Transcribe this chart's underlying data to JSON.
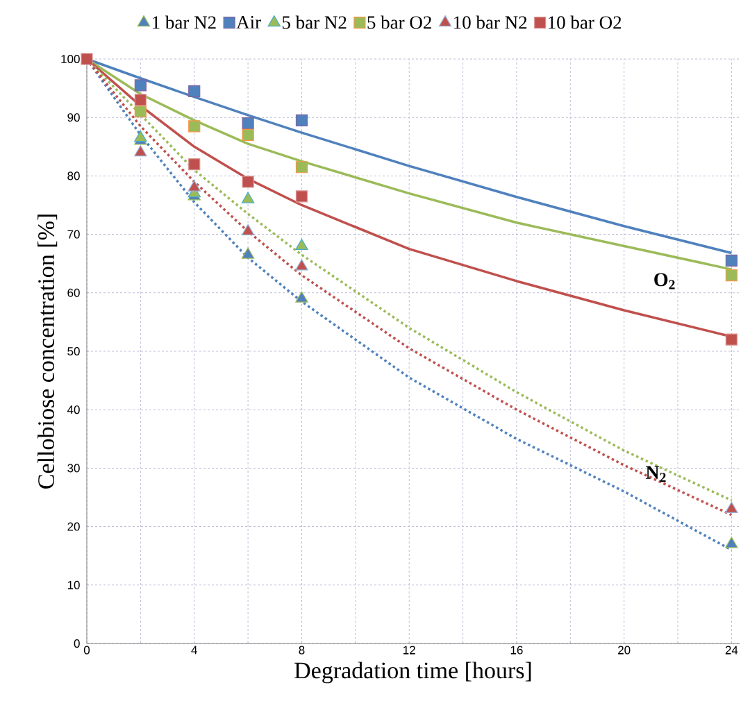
{
  "chart_data": {
    "type": "scatter",
    "xlabel": "Degradation time [hours]",
    "ylabel": "Cellobiose concentration [%]",
    "xlim": [
      0,
      24.3
    ],
    "ylim": [
      0,
      100
    ],
    "xticks": [
      0,
      {
        "value": 2,
        "label": null
      },
      4,
      {
        "value": 6,
        "label": null
      },
      8,
      {
        "value": 10,
        "label": null
      },
      12,
      {
        "value": 14,
        "label": null
      },
      16,
      {
        "value": 18,
        "label": null
      },
      20,
      {
        "value": 22,
        "label": null
      },
      24
    ],
    "yticks": [
      0,
      10,
      20,
      30,
      40,
      50,
      60,
      70,
      80,
      90,
      100
    ],
    "grid": true,
    "legend": "top",
    "annotations": [
      "O$_{2}$",
      "N$_{2}$"
    ],
    "series": [
      {
        "name": "1 bar N2",
        "marker": "triangle",
        "color": "#4f81bd",
        "x": [
          2,
          4,
          6,
          8,
          24
        ],
        "values": [
          86,
          76.5,
          66.5,
          59,
          17
        ]
      },
      {
        "name": "Air",
        "marker": "square",
        "color": "#4f81bd",
        "x": [
          2,
          4,
          6,
          8,
          24
        ],
        "values": [
          95.5,
          94.5,
          89,
          89.5,
          65.5
        ]
      },
      {
        "name": "5 bar N2",
        "marker": "triangle",
        "color": "#9bbb59",
        "x": [
          2,
          4,
          6,
          8
        ],
        "values": [
          86.5,
          77,
          76,
          68
        ]
      },
      {
        "name": "5 bar O2",
        "marker": "square",
        "color": "#9bbb59",
        "x": [
          2,
          4,
          6,
          8,
          24
        ],
        "values": [
          91,
          88.5,
          87,
          81.5,
          63
        ]
      },
      {
        "name": "10 bar N2",
        "marker": "triangle",
        "color": "#c0504d",
        "x": [
          2,
          4,
          6,
          8,
          24
        ],
        "values": [
          84,
          78,
          70.5,
          64.5,
          23
        ]
      },
      {
        "name": "10 bar O2",
        "marker": "square",
        "color": "#c0504d",
        "x": [
          0,
          2,
          4,
          6,
          8,
          24
        ],
        "values": [
          100,
          93,
          82,
          79,
          76.5,
          52
        ]
      },
      {
        "type": "line",
        "line_style": "solid",
        "color": "#4f81bd",
        "x": [
          0,
          2,
          4,
          6,
          8,
          12,
          16,
          20,
          24
        ],
        "values": [
          100,
          96.7,
          93.5,
          90.4,
          87.4,
          81.7,
          76.4,
          71.4,
          66.8
        ]
      },
      {
        "type": "line",
        "line_style": "solid",
        "color": "#9bbb59",
        "x": [
          0,
          2,
          4,
          6,
          8,
          12,
          16,
          20,
          24
        ],
        "values": [
          100,
          94,
          89.5,
          85.5,
          82.5,
          77,
          72,
          68,
          64
        ]
      },
      {
        "type": "line",
        "line_style": "solid",
        "color": "#c0504d",
        "x": [
          0,
          2,
          4,
          6,
          8,
          12,
          16,
          20,
          24
        ],
        "values": [
          100,
          92,
          85,
          79.5,
          75,
          67.5,
          62,
          57,
          52.5
        ]
      },
      {
        "type": "line",
        "line_style": "dotted",
        "color": "#4f81bd",
        "x": [
          0,
          2,
          4,
          6,
          8,
          12,
          16,
          20,
          24
        ],
        "values": [
          100,
          87,
          75.5,
          66,
          58.5,
          45.5,
          35,
          26,
          16
        ]
      },
      {
        "type": "line",
        "line_style": "dotted",
        "color": "#9bbb59",
        "x": [
          0,
          2,
          4,
          6,
          8,
          12,
          16,
          20,
          24
        ],
        "values": [
          100,
          90.5,
          81,
          73.5,
          66.5,
          54,
          43,
          33,
          24.5
        ]
      },
      {
        "type": "line",
        "line_style": "dotted",
        "color": "#c0504d",
        "x": [
          0,
          2,
          4,
          6,
          8,
          12,
          16,
          20,
          24
        ],
        "values": [
          100,
          88.5,
          79,
          70.5,
          63,
          50.5,
          40,
          30.5,
          22
        ]
      }
    ]
  }
}
